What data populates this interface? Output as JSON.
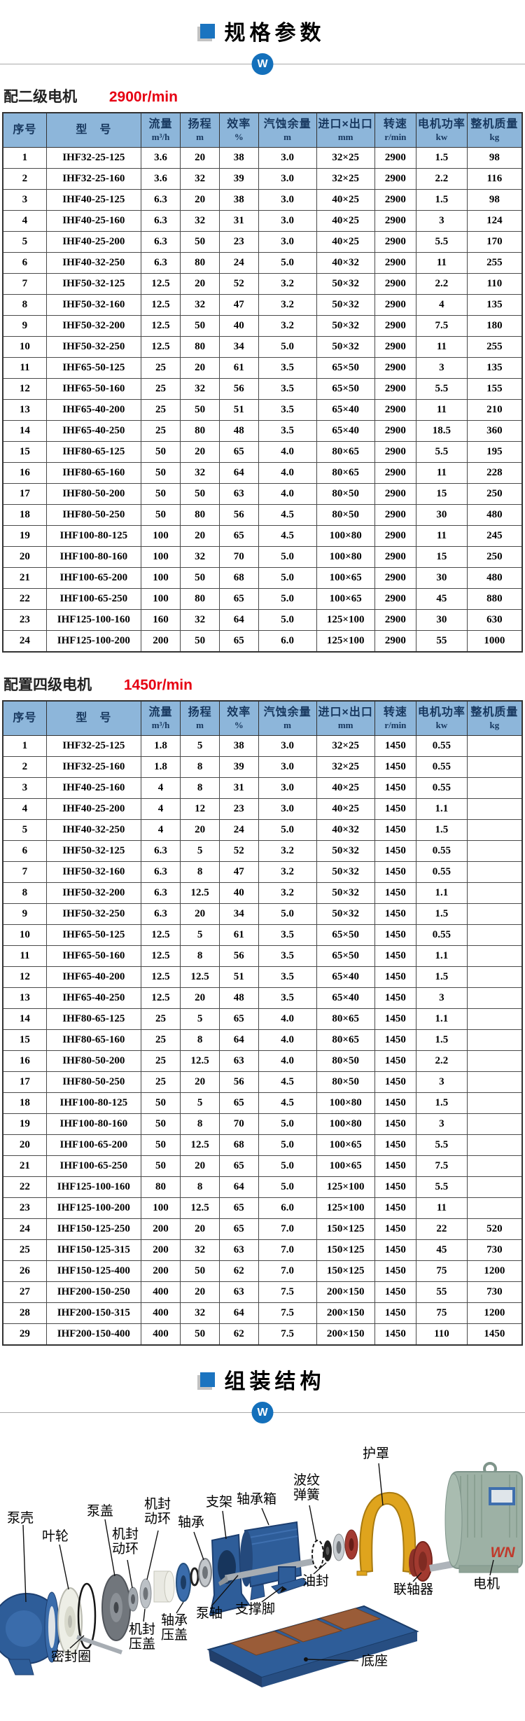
{
  "sections": {
    "spec_title": "规格参数",
    "assembly_title": "组装结构",
    "badge_letter": "W"
  },
  "table1": {
    "caption": "配二级电机",
    "speed": "2900r/min",
    "headers": [
      {
        "label": "序号",
        "unit": ""
      },
      {
        "label": "型　号",
        "unit": ""
      },
      {
        "label": "流量",
        "unit": "m³/h"
      },
      {
        "label": "扬程",
        "unit": "m"
      },
      {
        "label": "效率",
        "unit": "%"
      },
      {
        "label": "汽蚀余量",
        "unit": "m"
      },
      {
        "label": "进口×出口",
        "unit": "mm"
      },
      {
        "label": "转速",
        "unit": "r/min"
      },
      {
        "label": "电机功率",
        "unit": "kw"
      },
      {
        "label": "整机质量",
        "unit": "kg"
      }
    ],
    "rows": [
      [
        "1",
        "IHF32-25-125",
        "3.6",
        "20",
        "38",
        "3.0",
        "32×25",
        "2900",
        "1.5",
        "98"
      ],
      [
        "2",
        "IHF32-25-160",
        "3.6",
        "32",
        "39",
        "3.0",
        "32×25",
        "2900",
        "2.2",
        "116"
      ],
      [
        "3",
        "IHF40-25-125",
        "6.3",
        "20",
        "38",
        "3.0",
        "40×25",
        "2900",
        "1.5",
        "98"
      ],
      [
        "4",
        "IHF40-25-160",
        "6.3",
        "32",
        "31",
        "3.0",
        "40×25",
        "2900",
        "3",
        "124"
      ],
      [
        "5",
        "IHF40-25-200",
        "6.3",
        "50",
        "23",
        "3.0",
        "40×25",
        "2900",
        "5.5",
        "170"
      ],
      [
        "6",
        "IHF40-32-250",
        "6.3",
        "80",
        "24",
        "5.0",
        "40×32",
        "2900",
        "11",
        "255"
      ],
      [
        "7",
        "IHF50-32-125",
        "12.5",
        "20",
        "52",
        "3.2",
        "50×32",
        "2900",
        "2.2",
        "110"
      ],
      [
        "8",
        "IHF50-32-160",
        "12.5",
        "32",
        "47",
        "3.2",
        "50×32",
        "2900",
        "4",
        "135"
      ],
      [
        "9",
        "IHF50-32-200",
        "12.5",
        "50",
        "40",
        "3.2",
        "50×32",
        "2900",
        "7.5",
        "180"
      ],
      [
        "10",
        "IHF50-32-250",
        "12.5",
        "80",
        "34",
        "5.0",
        "50×32",
        "2900",
        "11",
        "255"
      ],
      [
        "11",
        "IHF65-50-125",
        "25",
        "20",
        "61",
        "3.5",
        "65×50",
        "2900",
        "3",
        "135"
      ],
      [
        "12",
        "IHF65-50-160",
        "25",
        "32",
        "56",
        "3.5",
        "65×50",
        "2900",
        "5.5",
        "155"
      ],
      [
        "13",
        "IHF65-40-200",
        "25",
        "50",
        "51",
        "3.5",
        "65×40",
        "2900",
        "11",
        "210"
      ],
      [
        "14",
        "IHF65-40-250",
        "25",
        "80",
        "48",
        "3.5",
        "65×40",
        "2900",
        "18.5",
        "360"
      ],
      [
        "15",
        "IHF80-65-125",
        "50",
        "20",
        "65",
        "4.0",
        "80×65",
        "2900",
        "5.5",
        "195"
      ],
      [
        "16",
        "IHF80-65-160",
        "50",
        "32",
        "64",
        "4.0",
        "80×65",
        "2900",
        "11",
        "228"
      ],
      [
        "17",
        "IHF80-50-200",
        "50",
        "50",
        "63",
        "4.0",
        "80×50",
        "2900",
        "15",
        "250"
      ],
      [
        "18",
        "IHF80-50-250",
        "50",
        "80",
        "56",
        "4.5",
        "80×50",
        "2900",
        "30",
        "480"
      ],
      [
        "19",
        "IHF100-80-125",
        "100",
        "20",
        "65",
        "4.5",
        "100×80",
        "2900",
        "11",
        "245"
      ],
      [
        "20",
        "IHF100-80-160",
        "100",
        "32",
        "70",
        "5.0",
        "100×80",
        "2900",
        "15",
        "250"
      ],
      [
        "21",
        "IHF100-65-200",
        "100",
        "50",
        "68",
        "5.0",
        "100×65",
        "2900",
        "30",
        "480"
      ],
      [
        "22",
        "IHF100-65-250",
        "100",
        "80",
        "65",
        "5.0",
        "100×65",
        "2900",
        "45",
        "880"
      ],
      [
        "23",
        "IHF125-100-160",
        "160",
        "32",
        "64",
        "5.0",
        "125×100",
        "2900",
        "30",
        "630"
      ],
      [
        "24",
        "IHF125-100-200",
        "200",
        "50",
        "65",
        "6.0",
        "125×100",
        "2900",
        "55",
        "1000"
      ]
    ]
  },
  "table2": {
    "caption": "配置四级电机",
    "speed": "1450r/min",
    "headers": [
      {
        "label": "序号",
        "unit": ""
      },
      {
        "label": "型　号",
        "unit": ""
      },
      {
        "label": "流量",
        "unit": "m³/h"
      },
      {
        "label": "扬程",
        "unit": "m"
      },
      {
        "label": "效率",
        "unit": "%"
      },
      {
        "label": "汽蚀余量",
        "unit": "m"
      },
      {
        "label": "进口×出口",
        "unit": "mm"
      },
      {
        "label": "转速",
        "unit": "r/min"
      },
      {
        "label": "电机功率",
        "unit": "kw"
      },
      {
        "label": "整机质量",
        "unit": "kg"
      }
    ],
    "rows": [
      [
        "1",
        "IHF32-25-125",
        "1.8",
        "5",
        "38",
        "3.0",
        "32×25",
        "1450",
        "0.55",
        ""
      ],
      [
        "2",
        "IHF32-25-160",
        "1.8",
        "8",
        "39",
        "3.0",
        "32×25",
        "1450",
        "0.55",
        ""
      ],
      [
        "3",
        "IHF40-25-160",
        "4",
        "8",
        "31",
        "3.0",
        "40×25",
        "1450",
        "0.55",
        ""
      ],
      [
        "4",
        "IHF40-25-200",
        "4",
        "12",
        "23",
        "3.0",
        "40×25",
        "1450",
        "1.1",
        ""
      ],
      [
        "5",
        "IHF40-32-250",
        "4",
        "20",
        "24",
        "5.0",
        "40×32",
        "1450",
        "1.5",
        ""
      ],
      [
        "6",
        "IHF50-32-125",
        "6.3",
        "5",
        "52",
        "3.2",
        "50×32",
        "1450",
        "0.55",
        ""
      ],
      [
        "7",
        "IHF50-32-160",
        "6.3",
        "8",
        "47",
        "3.2",
        "50×32",
        "1450",
        "0.55",
        ""
      ],
      [
        "8",
        "IHF50-32-200",
        "6.3",
        "12.5",
        "40",
        "3.2",
        "50×32",
        "1450",
        "1.1",
        ""
      ],
      [
        "9",
        "IHF50-32-250",
        "6.3",
        "20",
        "34",
        "5.0",
        "50×32",
        "1450",
        "1.5",
        ""
      ],
      [
        "10",
        "IHF65-50-125",
        "12.5",
        "5",
        "61",
        "3.5",
        "65×50",
        "1450",
        "0.55",
        ""
      ],
      [
        "11",
        "IHF65-50-160",
        "12.5",
        "8",
        "56",
        "3.5",
        "65×50",
        "1450",
        "1.1",
        ""
      ],
      [
        "12",
        "IHF65-40-200",
        "12.5",
        "12.5",
        "51",
        "3.5",
        "65×40",
        "1450",
        "1.5",
        ""
      ],
      [
        "13",
        "IHF65-40-250",
        "12.5",
        "20",
        "48",
        "3.5",
        "65×40",
        "1450",
        "3",
        ""
      ],
      [
        "14",
        "IHF80-65-125",
        "25",
        "5",
        "65",
        "4.0",
        "80×65",
        "1450",
        "1.1",
        ""
      ],
      [
        "15",
        "IHF80-65-160",
        "25",
        "8",
        "64",
        "4.0",
        "80×65",
        "1450",
        "1.5",
        ""
      ],
      [
        "16",
        "IHF80-50-200",
        "25",
        "12.5",
        "63",
        "4.0",
        "80×50",
        "1450",
        "2.2",
        ""
      ],
      [
        "17",
        "IHF80-50-250",
        "25",
        "20",
        "56",
        "4.5",
        "80×50",
        "1450",
        "3",
        ""
      ],
      [
        "18",
        "IHF100-80-125",
        "50",
        "5",
        "65",
        "4.5",
        "100×80",
        "1450",
        "1.5",
        ""
      ],
      [
        "19",
        "IHF100-80-160",
        "50",
        "8",
        "70",
        "5.0",
        "100×80",
        "1450",
        "3",
        ""
      ],
      [
        "20",
        "IHF100-65-200",
        "50",
        "12.5",
        "68",
        "5.0",
        "100×65",
        "1450",
        "5.5",
        ""
      ],
      [
        "21",
        "IHF100-65-250",
        "50",
        "20",
        "65",
        "5.0",
        "100×65",
        "1450",
        "7.5",
        ""
      ],
      [
        "22",
        "IHF125-100-160",
        "80",
        "8",
        "64",
        "5.0",
        "125×100",
        "1450",
        "5.5",
        ""
      ],
      [
        "23",
        "IHF125-100-200",
        "100",
        "12.5",
        "65",
        "6.0",
        "125×100",
        "1450",
        "11",
        ""
      ],
      [
        "24",
        "IHF150-125-250",
        "200",
        "20",
        "65",
        "7.0",
        "150×125",
        "1450",
        "22",
        "520"
      ],
      [
        "25",
        "IHF150-125-315",
        "200",
        "32",
        "63",
        "7.0",
        "150×125",
        "1450",
        "45",
        "730"
      ],
      [
        "26",
        "IHF150-125-400",
        "200",
        "50",
        "62",
        "7.0",
        "150×125",
        "1450",
        "75",
        "1200"
      ],
      [
        "27",
        "IHF200-150-250",
        "400",
        "20",
        "63",
        "7.5",
        "200×150",
        "1450",
        "55",
        "730"
      ],
      [
        "28",
        "IHF200-150-315",
        "400",
        "32",
        "64",
        "7.5",
        "200×150",
        "1450",
        "75",
        "1200"
      ],
      [
        "29",
        "IHF200-150-400",
        "400",
        "50",
        "62",
        "7.5",
        "200×150",
        "1450",
        "110",
        "1450"
      ]
    ]
  },
  "diagram": {
    "motor_badge": "WN",
    "labels": [
      "泵壳",
      "叶轮",
      "泵盖",
      "机封动环",
      "轴承",
      "支架",
      "轴承箱",
      "波纹弹簧",
      "护罩",
      "机封动环",
      "密封圈",
      "机封压盖",
      "轴承压盖",
      "泵轴",
      "支撑脚",
      "油封",
      "联轴器",
      "电机",
      "底座"
    ]
  }
}
